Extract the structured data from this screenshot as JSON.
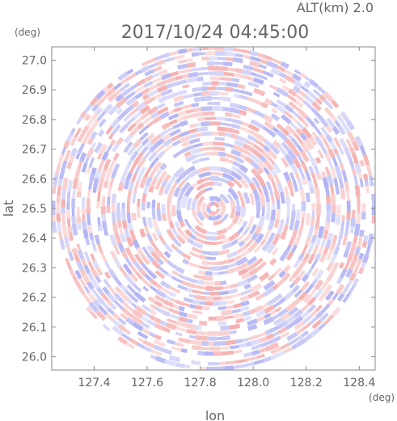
{
  "chart_data": {
    "type": "heatmap",
    "title": "2017/10/24 04:45:00",
    "subtitle": "ALT(km) 2.0",
    "xlabel": "lon",
    "ylabel": "lat",
    "xunit": "(deg)",
    "yunit": "(deg)",
    "xlim": [
      127.24,
      128.46
    ],
    "ylim": [
      25.955,
      27.045
    ],
    "xticks": [
      "127.4",
      "127.6",
      "127.8",
      "128.0",
      "128.2",
      "128.4"
    ],
    "yticks": [
      "26.0",
      "26.1",
      "26.2",
      "26.3",
      "26.4",
      "26.5",
      "26.6",
      "26.7",
      "26.8",
      "26.9",
      "27.0"
    ],
    "radar_center": {
      "lon": 127.85,
      "lat": 26.5
    },
    "radar_radius_deg_lat": 0.55,
    "colors": {
      "positive": "#f4a6a6",
      "negative": "#a9abf2",
      "frame": "#8a8a8a",
      "text": "#666666"
    }
  }
}
